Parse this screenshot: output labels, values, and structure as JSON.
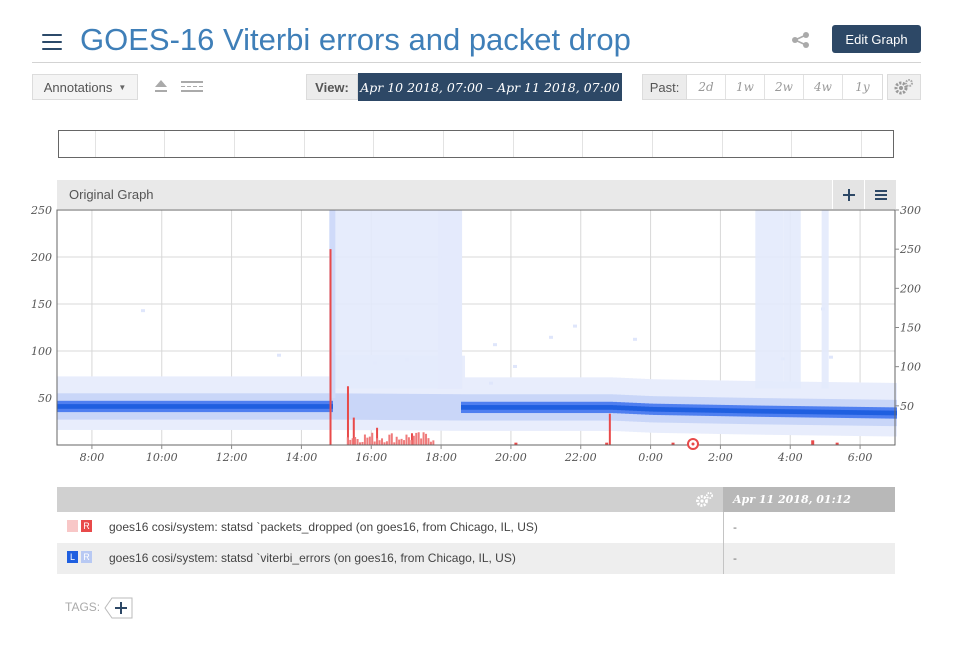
{
  "header": {
    "title": "GOES-16 Viterbi errors and packet drop",
    "edit_label": "Edit Graph",
    "menu_icon": "hamburger-menu-icon",
    "share_icon": "share-icon"
  },
  "toolbar": {
    "annotations_label": "Annotations",
    "view_label": "View:",
    "view_range": "Apr 10 2018, 07:00  –  Apr 11 2018, 07:00",
    "past_label": "Past:",
    "past_options": [
      "2d",
      "1w",
      "2w",
      "4w",
      "1y"
    ]
  },
  "graph": {
    "title": "Original Graph",
    "left_axis_ticks": [
      "250",
      "200",
      "150",
      "100",
      "50"
    ],
    "right_axis_ticks": [
      "300",
      "250",
      "200",
      "150",
      "100",
      "50"
    ],
    "x_ticks": [
      "8:00",
      "10:00",
      "12:00",
      "14:00",
      "16:00",
      "18:00",
      "20:00",
      "22:00",
      "0:00",
      "2:00",
      "4:00",
      "6:00"
    ]
  },
  "chart_data": {
    "type": "heatmap",
    "x_range": [
      "Apr 10 2018, 07:00",
      "Apr 11 2018, 07:00"
    ],
    "x_ticks": [
      "8:00",
      "10:00",
      "12:00",
      "14:00",
      "16:00",
      "18:00",
      "20:00",
      "22:00",
      "0:00",
      "2:00",
      "4:00",
      "6:00"
    ],
    "y_left_range": [
      0,
      250
    ],
    "y_right_range": [
      0,
      300
    ],
    "series": [
      {
        "name": "goes16 cosi/system: statsd `packets_dropped (on goes16, from Chicago, IL, US)",
        "axis": "right",
        "color": "#e84a4a",
        "spikes": [
          {
            "time": "14:50",
            "value": 250
          },
          {
            "time": "15:20",
            "value": 75
          },
          {
            "time": "15:30",
            "value": 35
          },
          {
            "time": "16:10",
            "value": 22
          },
          {
            "time": "17:10",
            "value": 15
          },
          {
            "time": "22:50",
            "value": 40
          }
        ]
      },
      {
        "name": "goes16 cosi/system: statsd `viterbi_errors (on goes16, from Chicago, IL, US)",
        "axis": "left",
        "color": "#1f5fe0",
        "median_band": [
          {
            "time": "07:00",
            "value": 41
          },
          {
            "time": "14:50",
            "value": 41
          },
          {
            "time": "18:40",
            "value": 40
          },
          {
            "time": "22:50",
            "value": 40
          },
          {
            "time": "0:00",
            "value": 38
          },
          {
            "time": "3:00",
            "value": 36
          },
          {
            "time": "7:00",
            "value": 34
          }
        ]
      }
    ]
  },
  "legend": {
    "date_header": "Apr 11 2018, 01:12",
    "rows": [
      {
        "axis": "R",
        "name": "goes16 cosi/system: statsd `packets_dropped (on goes16, from Chicago, IL, US)",
        "value": "-",
        "color": "#e84a4a"
      },
      {
        "axis_left": "L",
        "axis_right": "R",
        "name": "goes16 cosi/system: statsd `viterbi_errors (on goes16, from Chicago, IL, US)",
        "value": "-",
        "color": "#1f5fe0"
      }
    ]
  },
  "tags": {
    "label": "TAGS:"
  },
  "colors": {
    "accent": "#2d4866",
    "title": "#3f7fb8",
    "red_series": "#e84a4a",
    "blue_series": "#1f5fe0"
  }
}
